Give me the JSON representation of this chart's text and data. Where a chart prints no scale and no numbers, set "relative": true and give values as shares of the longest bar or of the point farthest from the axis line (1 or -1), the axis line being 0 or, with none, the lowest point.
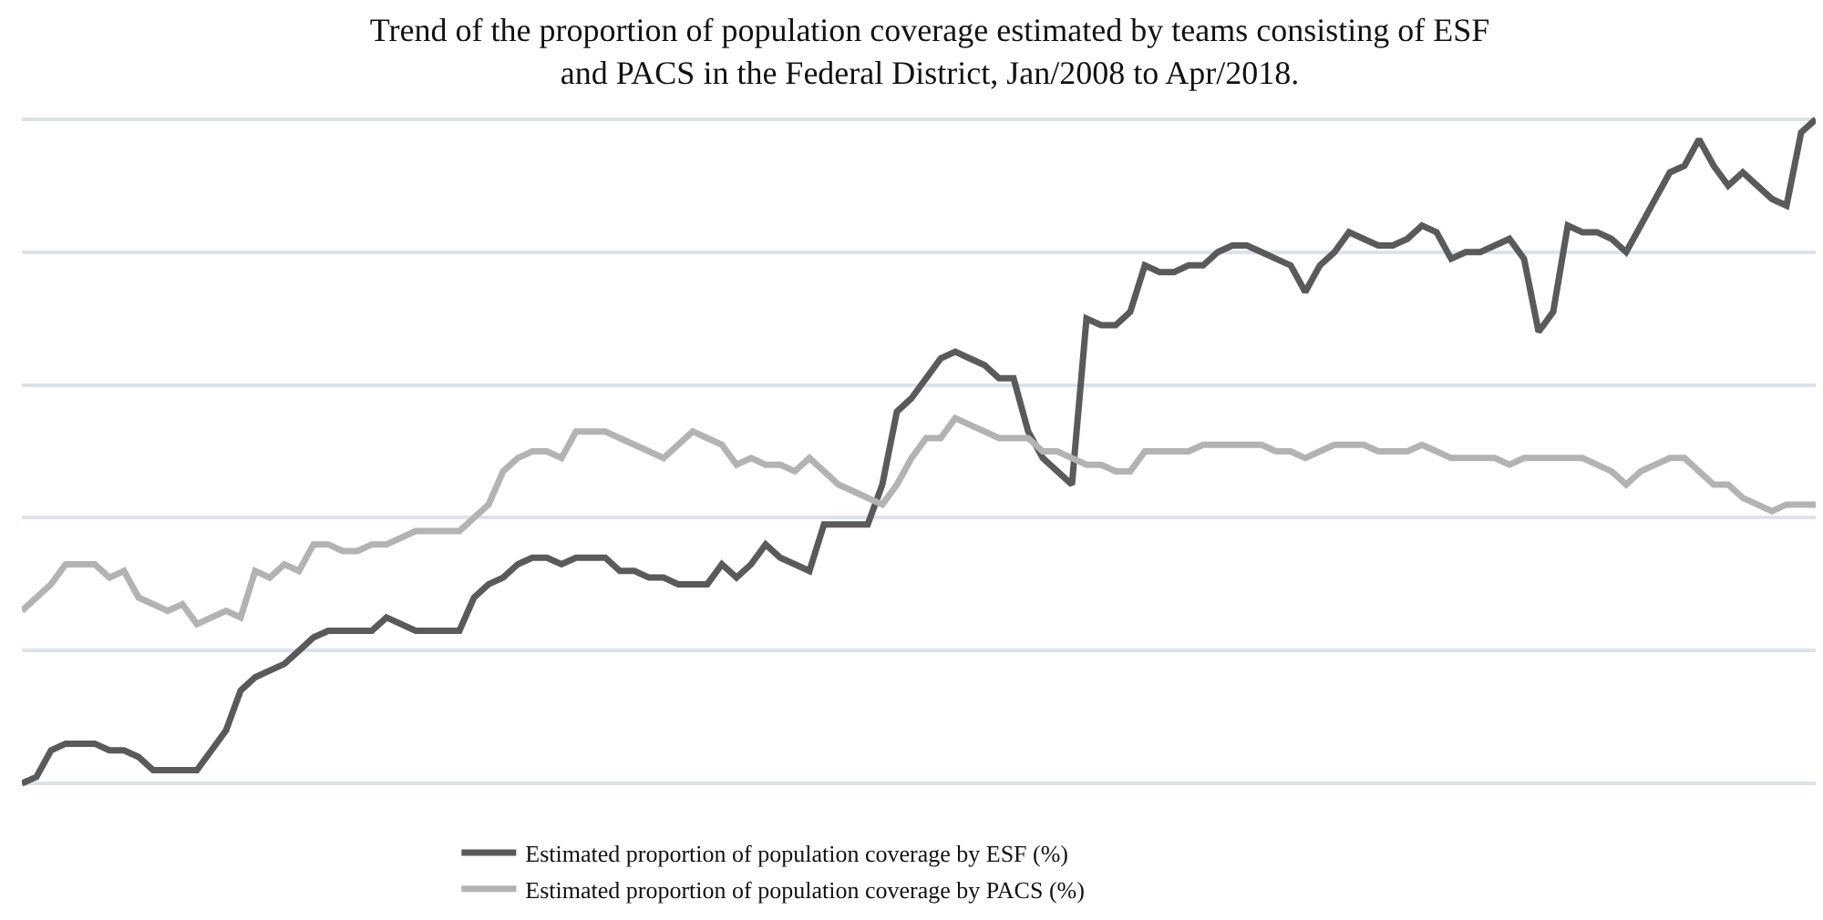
{
  "chart_data": {
    "type": "line",
    "relative": true,
    "title": "Trend of the proportion of population coverage estimated by teams consisting of ESF\nand PACS in the Federal District, Jan/2008 to Apr/2018.",
    "grid": "y",
    "legend": "bottom",
    "line_style": "solid",
    "marker": "none",
    "categories": [
      null,
      null,
      null,
      null,
      null,
      null,
      null,
      null,
      null,
      null,
      null,
      null,
      null,
      null,
      null,
      null,
      null,
      null,
      null,
      null,
      null,
      null,
      null,
      null,
      null,
      null,
      null,
      null,
      null,
      null,
      null,
      null,
      null,
      null,
      null,
      null,
      null,
      null,
      null,
      null,
      null,
      null,
      null,
      null,
      null,
      null,
      null,
      null,
      null,
      null,
      null,
      null,
      null,
      null,
      null,
      null,
      null,
      null,
      null,
      null,
      null,
      null,
      null,
      null,
      null,
      null,
      null,
      null,
      null,
      null,
      null,
      null,
      null,
      null,
      null,
      null,
      null,
      null,
      null,
      null,
      null,
      null,
      null,
      null,
      null,
      null,
      null,
      null,
      null,
      null,
      null,
      null,
      null,
      null,
      null,
      null,
      null,
      null,
      null,
      null,
      null,
      null,
      null,
      null,
      null,
      null,
      null,
      null,
      null,
      null,
      null,
      null,
      null,
      null,
      null,
      null,
      null,
      null,
      null,
      null,
      null,
      null,
      null,
      null
    ],
    "series": [
      {
        "name": "Estimated proportion of population coverage by ESF (%)",
        "color": "#5a5a5a",
        "values": [
          0.0,
          0.01,
          0.05,
          0.06,
          0.06,
          0.06,
          0.05,
          0.05,
          0.04,
          0.02,
          0.02,
          0.02,
          0.02,
          0.05,
          0.08,
          0.14,
          0.16,
          0.17,
          0.18,
          0.2,
          0.22,
          0.23,
          0.23,
          0.23,
          0.23,
          0.25,
          0.24,
          0.23,
          0.23,
          0.23,
          0.23,
          0.28,
          0.3,
          0.31,
          0.33,
          0.34,
          0.34,
          0.33,
          0.34,
          0.34,
          0.34,
          0.32,
          0.32,
          0.31,
          0.31,
          0.3,
          0.3,
          0.3,
          0.33,
          0.31,
          0.33,
          0.36,
          0.34,
          0.33,
          0.32,
          0.39,
          0.39,
          0.39,
          0.39,
          0.45,
          0.56,
          0.58,
          0.61,
          0.64,
          0.65,
          0.64,
          0.63,
          0.61,
          0.61,
          0.53,
          0.49,
          0.47,
          0.45,
          0.7,
          0.69,
          0.69,
          0.71,
          0.78,
          0.77,
          0.77,
          0.78,
          0.78,
          0.8,
          0.81,
          0.81,
          0.8,
          0.79,
          0.78,
          0.74,
          0.78,
          0.8,
          0.83,
          0.82,
          0.81,
          0.81,
          0.82,
          0.84,
          0.83,
          0.79,
          0.8,
          0.8,
          0.81,
          0.82,
          0.79,
          0.68,
          0.71,
          0.84,
          0.83,
          0.83,
          0.82,
          0.8,
          0.84,
          0.88,
          0.92,
          0.93,
          0.97,
          0.93,
          0.9,
          0.92,
          0.9,
          0.88,
          0.87,
          0.98,
          1.0
        ]
      },
      {
        "name": "Estimated proportion of population coverage by PACS (%)",
        "color": "#b3b3b3",
        "values": [
          0.26,
          0.28,
          0.3,
          0.33,
          0.33,
          0.33,
          0.31,
          0.32,
          0.28,
          0.27,
          0.26,
          0.27,
          0.24,
          0.25,
          0.26,
          0.25,
          0.32,
          0.31,
          0.33,
          0.32,
          0.36,
          0.36,
          0.35,
          0.35,
          0.36,
          0.36,
          0.37,
          0.38,
          0.38,
          0.38,
          0.38,
          0.4,
          0.42,
          0.47,
          0.49,
          0.5,
          0.5,
          0.49,
          0.53,
          0.53,
          0.53,
          0.52,
          0.51,
          0.5,
          0.49,
          0.51,
          0.53,
          0.52,
          0.51,
          0.48,
          0.49,
          0.48,
          0.48,
          0.47,
          0.49,
          0.47,
          0.45,
          0.44,
          0.43,
          0.42,
          0.45,
          0.49,
          0.52,
          0.52,
          0.55,
          0.54,
          0.53,
          0.52,
          0.52,
          0.52,
          0.5,
          0.5,
          0.49,
          0.48,
          0.48,
          0.47,
          0.47,
          0.5,
          0.5,
          0.5,
          0.5,
          0.51,
          0.51,
          0.51,
          0.51,
          0.51,
          0.5,
          0.5,
          0.49,
          0.5,
          0.51,
          0.51,
          0.51,
          0.5,
          0.5,
          0.5,
          0.51,
          0.5,
          0.49,
          0.49,
          0.49,
          0.49,
          0.48,
          0.49,
          0.49,
          0.49,
          0.49,
          0.49,
          0.48,
          0.47,
          0.45,
          0.47,
          0.48,
          0.49,
          0.49,
          0.47,
          0.45,
          0.45,
          0.43,
          0.42,
          0.41,
          0.42,
          0.42,
          0.42
        ]
      }
    ]
  }
}
